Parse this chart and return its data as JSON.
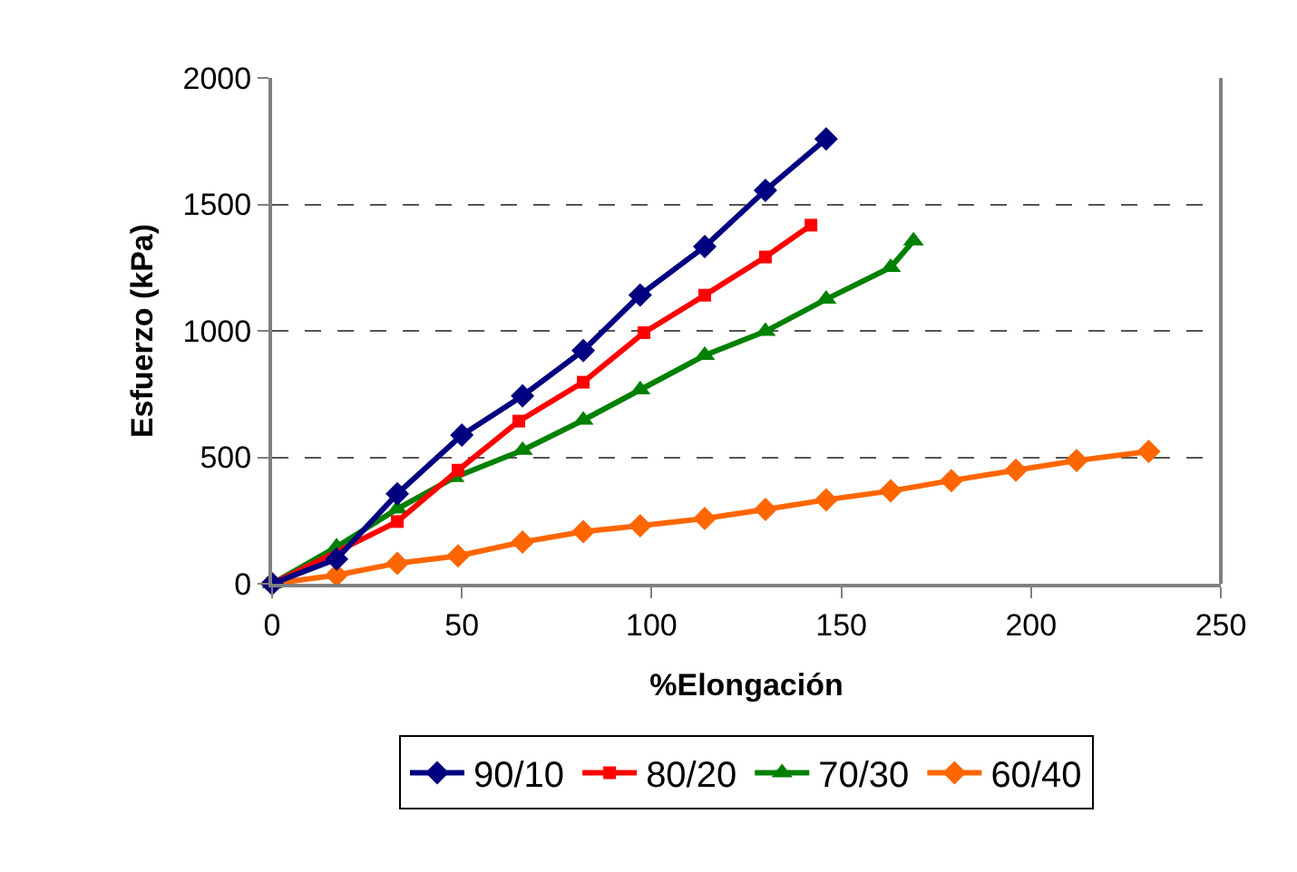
{
  "chart_data": {
    "type": "line",
    "xlabel": "%Elongación",
    "ylabel": "Esfuerzo (kPa)",
    "xlim": [
      0,
      250
    ],
    "xticks": [
      0,
      50,
      100,
      150,
      200,
      250
    ],
    "ylim": [
      0,
      2000
    ],
    "yticks": [
      0,
      500,
      1000,
      1500,
      2000
    ],
    "grid": "y",
    "legend": "bottom",
    "line_style": "solid",
    "series": [
      {
        "name": "90/10",
        "color": "#000080",
        "marker": "diamond",
        "x": [
          0,
          17,
          33,
          50,
          66,
          82,
          97,
          114,
          130,
          146
        ],
        "values": [
          0,
          98,
          356,
          588,
          743,
          922,
          1142,
          1333,
          1556,
          1759
        ]
      },
      {
        "name": "80/20",
        "color": "#ff0000",
        "marker": "square",
        "x": [
          0,
          33,
          49,
          65,
          82,
          98,
          114,
          130,
          142
        ],
        "values": [
          0,
          246,
          449,
          643,
          797,
          993,
          1141,
          1292,
          1418
        ]
      },
      {
        "name": "70/30",
        "color": "#008000",
        "marker": "triangle",
        "x": [
          0,
          17,
          33,
          48,
          66,
          82,
          97,
          114,
          130,
          146,
          163,
          169
        ],
        "values": [
          0,
          146,
          296,
          420,
          528,
          647,
          767,
          903,
          998,
          1125,
          1251,
          1356
        ]
      },
      {
        "name": "60/40",
        "color": "#ff6600",
        "marker": "diamond",
        "x": [
          0,
          17,
          33,
          49,
          66,
          82,
          97,
          114,
          130,
          146,
          163,
          179,
          196,
          212,
          231
        ],
        "values": [
          0,
          34,
          81,
          110,
          165,
          206,
          229,
          258,
          294,
          332,
          367,
          408,
          449,
          487,
          523
        ]
      }
    ]
  }
}
